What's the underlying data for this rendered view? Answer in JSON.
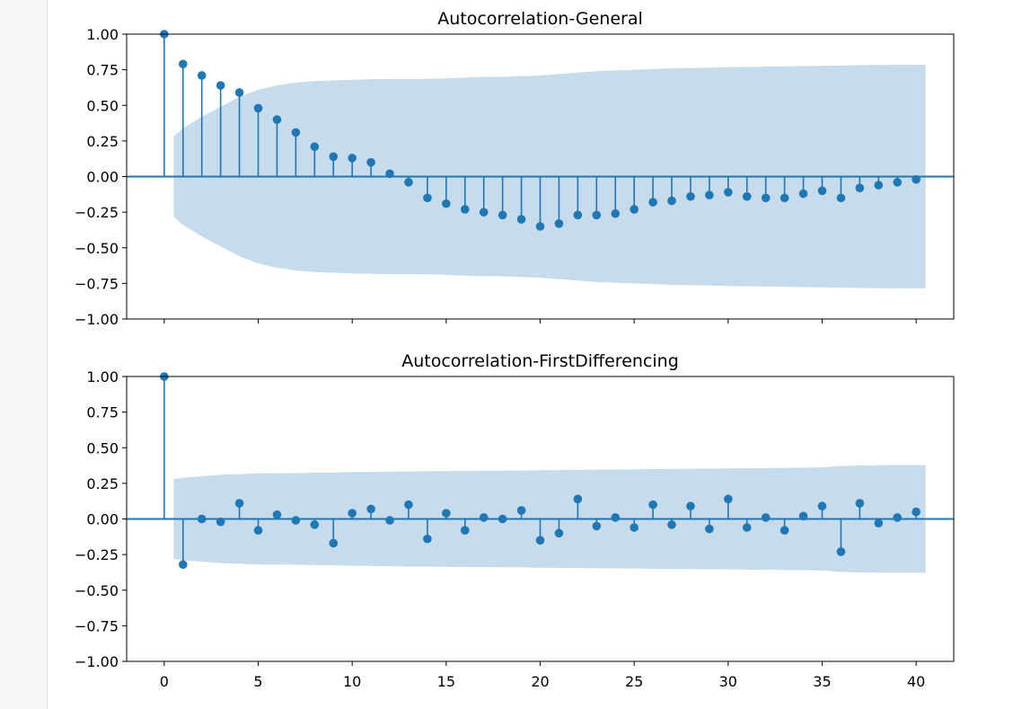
{
  "colors": {
    "series": "#1f77b4",
    "confidence_band": "#c6dbeb",
    "axis": "#000000",
    "gutter": "#f7f7f7"
  },
  "chart_data": [
    {
      "type": "stem",
      "title": "Autocorrelation-General",
      "xlabel": "",
      "ylabel": "",
      "xlim": [
        -2,
        42
      ],
      "ylim": [
        -1.0,
        1.0
      ],
      "yticks": [
        -1.0,
        -0.75,
        -0.5,
        -0.25,
        0.0,
        0.25,
        0.5,
        0.75,
        1.0
      ],
      "ytick_labels": [
        "−1.00",
        "−0.75",
        "−0.50",
        "−0.25",
        "0.00",
        "0.25",
        "0.50",
        "0.75",
        "1.00"
      ],
      "xticks": [
        0,
        5,
        10,
        15,
        20,
        25,
        30,
        35,
        40
      ],
      "xtick_labels": [],
      "grid": false,
      "lags": [
        0,
        1,
        2,
        3,
        4,
        5,
        6,
        7,
        8,
        9,
        10,
        11,
        12,
        13,
        14,
        15,
        16,
        17,
        18,
        19,
        20,
        21,
        22,
        23,
        24,
        25,
        26,
        27,
        28,
        29,
        30,
        31,
        32,
        33,
        34,
        35,
        36,
        37,
        38,
        39,
        40
      ],
      "values": [
        1.0,
        0.79,
        0.71,
        0.64,
        0.59,
        0.48,
        0.4,
        0.31,
        0.21,
        0.14,
        0.13,
        0.1,
        0.02,
        -0.04,
        -0.15,
        -0.19,
        -0.23,
        -0.25,
        -0.27,
        -0.3,
        -0.35,
        -0.33,
        -0.27,
        -0.27,
        -0.26,
        -0.23,
        -0.18,
        -0.17,
        -0.14,
        -0.13,
        -0.11,
        -0.14,
        -0.15,
        -0.15,
        -0.12,
        -0.1,
        -0.15,
        -0.08,
        -0.06,
        -0.04,
        -0.02
      ],
      "confint": {
        "x": [
          0.5,
          1,
          2,
          3,
          4,
          5,
          6,
          7,
          8,
          9,
          10,
          11,
          12,
          13,
          14,
          15,
          16,
          17,
          18,
          19,
          20,
          21,
          22,
          23,
          24,
          25,
          26,
          27,
          28,
          29,
          30,
          31,
          32,
          33,
          34,
          35,
          36,
          37,
          38,
          39,
          40.5
        ],
        "upper": [
          0.28,
          0.34,
          0.42,
          0.49,
          0.56,
          0.61,
          0.64,
          0.66,
          0.67,
          0.675,
          0.68,
          0.683,
          0.685,
          0.685,
          0.686,
          0.69,
          0.695,
          0.7,
          0.7,
          0.705,
          0.71,
          0.72,
          0.73,
          0.74,
          0.745,
          0.75,
          0.755,
          0.76,
          0.762,
          0.765,
          0.768,
          0.77,
          0.772,
          0.774,
          0.776,
          0.778,
          0.78,
          0.782,
          0.784,
          0.785,
          0.785
        ]
      }
    },
    {
      "type": "stem",
      "title": "Autocorrelation-FirstDifferencing",
      "xlabel": "",
      "ylabel": "",
      "xlim": [
        -2,
        42
      ],
      "ylim": [
        -1.0,
        1.0
      ],
      "yticks": [
        -1.0,
        -0.75,
        -0.5,
        -0.25,
        0.0,
        0.25,
        0.5,
        0.75,
        1.0
      ],
      "ytick_labels": [
        "−1.00",
        "−0.75",
        "−0.50",
        "−0.25",
        "0.00",
        "0.25",
        "0.50",
        "0.75",
        "1.00"
      ],
      "xticks": [
        0,
        5,
        10,
        15,
        20,
        25,
        30,
        35,
        40
      ],
      "xtick_labels": [
        "0",
        "5",
        "10",
        "15",
        "20",
        "25",
        "30",
        "35",
        "40"
      ],
      "grid": false,
      "lags": [
        0,
        1,
        2,
        3,
        4,
        5,
        6,
        7,
        8,
        9,
        10,
        11,
        12,
        13,
        14,
        15,
        16,
        17,
        18,
        19,
        20,
        21,
        22,
        23,
        24,
        25,
        26,
        27,
        28,
        29,
        30,
        31,
        32,
        33,
        34,
        35,
        36,
        37,
        38,
        39,
        40
      ],
      "values": [
        1.0,
        -0.32,
        0.0,
        -0.02,
        0.11,
        -0.08,
        0.03,
        -0.01,
        -0.04,
        -0.17,
        0.04,
        0.07,
        -0.01,
        0.1,
        -0.14,
        0.04,
        -0.08,
        0.01,
        0.0,
        0.06,
        -0.15,
        -0.1,
        0.14,
        -0.05,
        0.01,
        -0.06,
        0.1,
        -0.04,
        0.09,
        -0.07,
        0.14,
        -0.06,
        0.01,
        -0.08,
        0.02,
        0.09,
        -0.23,
        0.11,
        -0.03,
        0.01,
        0.05
      ],
      "confint": {
        "x": [
          0.5,
          1,
          2,
          3,
          4,
          5,
          6,
          7,
          8,
          9,
          10,
          11,
          12,
          13,
          14,
          15,
          16,
          17,
          18,
          19,
          20,
          21,
          22,
          23,
          24,
          25,
          26,
          27,
          28,
          29,
          30,
          31,
          32,
          33,
          34,
          35,
          36,
          37,
          38,
          39,
          40.5
        ],
        "upper": [
          0.28,
          0.29,
          0.3,
          0.31,
          0.315,
          0.32,
          0.32,
          0.322,
          0.325,
          0.325,
          0.33,
          0.33,
          0.332,
          0.334,
          0.335,
          0.336,
          0.337,
          0.338,
          0.339,
          0.34,
          0.342,
          0.343,
          0.345,
          0.346,
          0.347,
          0.348,
          0.35,
          0.351,
          0.352,
          0.353,
          0.355,
          0.356,
          0.357,
          0.358,
          0.36,
          0.362,
          0.372,
          0.375,
          0.377,
          0.378,
          0.378
        ]
      }
    }
  ]
}
